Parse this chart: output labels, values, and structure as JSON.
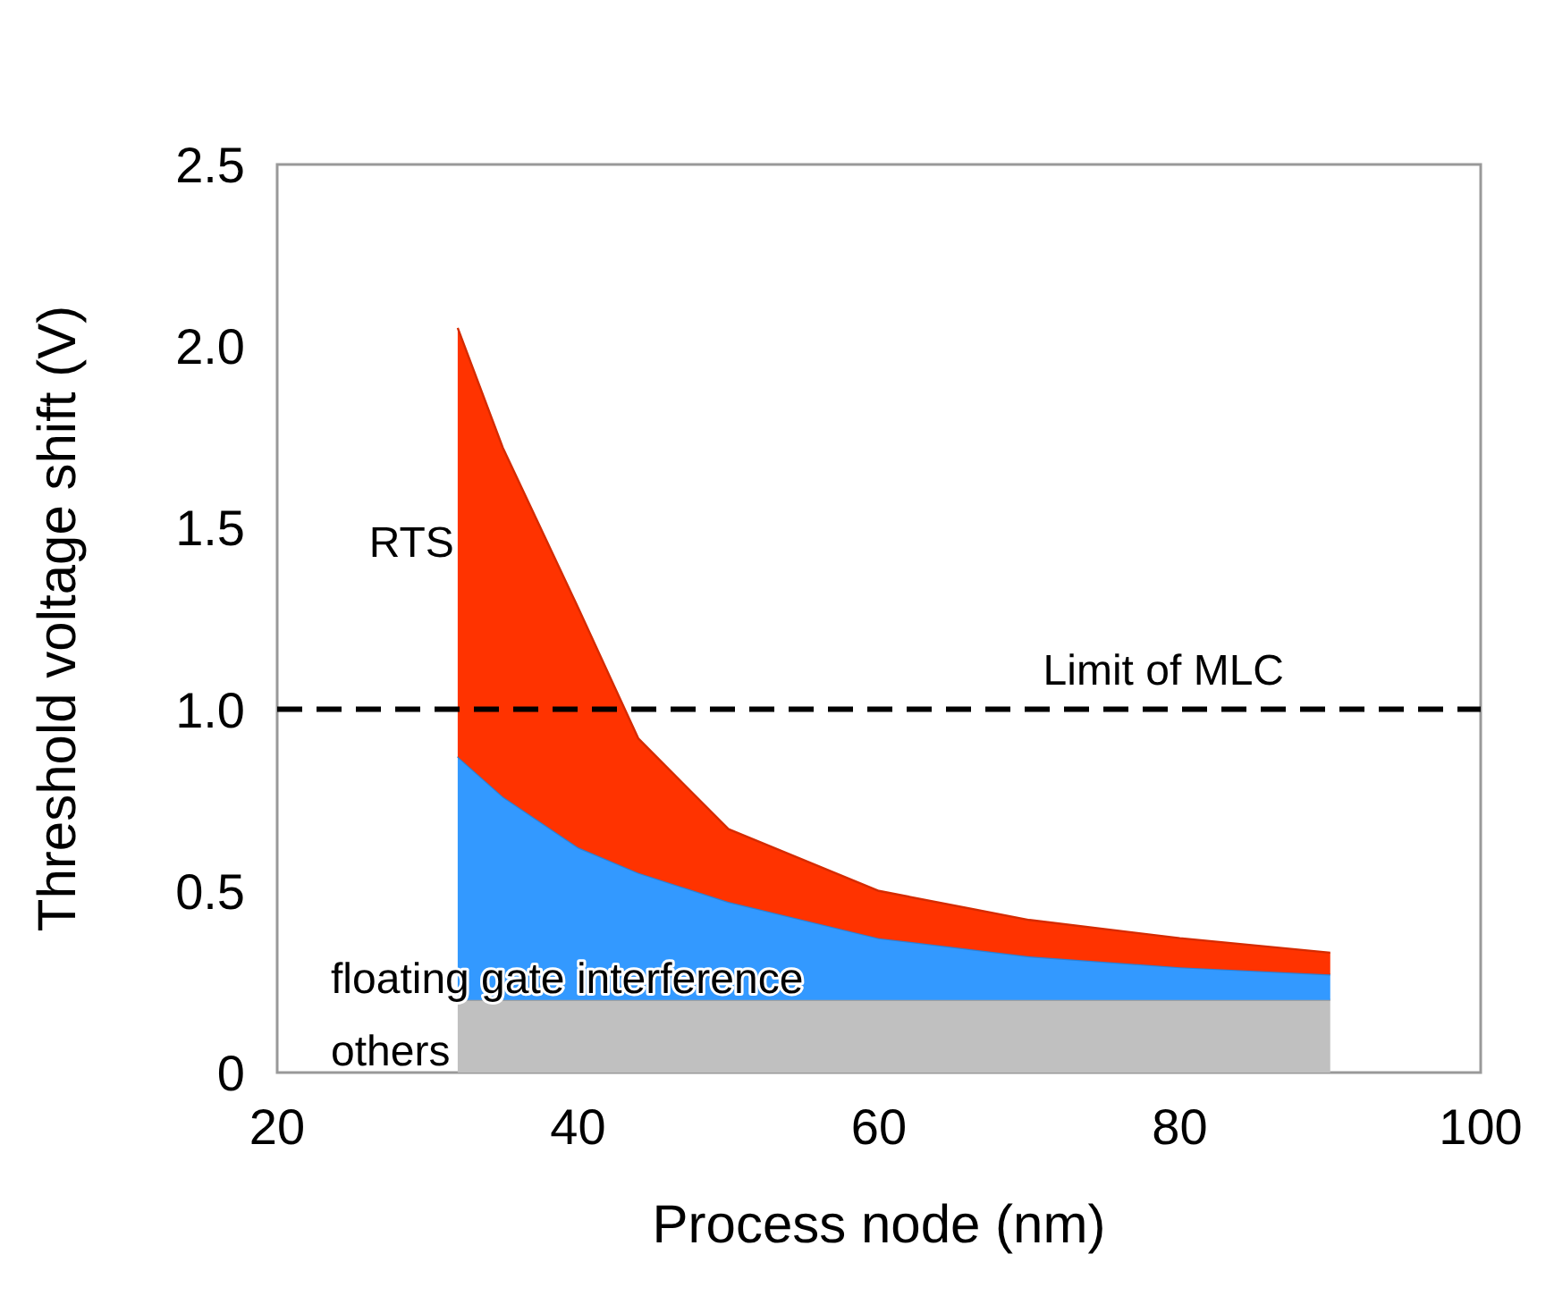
{
  "chart_data": {
    "type": "area",
    "stacked": true,
    "xlabel": "Process node (nm)",
    "ylabel": "Threshold voltage shift  (V)",
    "x": [
      32,
      35,
      40,
      44,
      50,
      60,
      70,
      80,
      90
    ],
    "series": [
      {
        "name": "others",
        "color": "#c0c0c0",
        "values": [
          0.2,
          0.2,
          0.2,
          0.2,
          0.2,
          0.2,
          0.2,
          0.2,
          0.2
        ]
      },
      {
        "name": "floating gate interference",
        "color": "#3399ff",
        "values": [
          0.67,
          0.56,
          0.42,
          0.35,
          0.27,
          0.17,
          0.12,
          0.09,
          0.07
        ]
      },
      {
        "name": "RTS",
        "color": "#ff3300",
        "values": [
          1.18,
          0.96,
          0.66,
          0.37,
          0.2,
          0.13,
          0.1,
          0.08,
          0.06
        ]
      }
    ],
    "xlim": [
      20,
      100
    ],
    "xticks": [
      20,
      40,
      60,
      80,
      100
    ],
    "ylim": [
      0,
      2.5
    ],
    "yticks": [
      0,
      0.5,
      {
        "value": 1,
        "label": "1.0"
      },
      {
        "value": 1.5,
        "label": "1.5"
      },
      {
        "value": 2,
        "label": "2.0"
      },
      {
        "value": 2.5,
        "label": "2.5"
      }
    ],
    "ref_lines": [
      {
        "axis": "y",
        "value": 1,
        "label": "Limit of MLC",
        "color": "#000000",
        "line_style": "dashed"
      }
    ],
    "grid": false
  }
}
